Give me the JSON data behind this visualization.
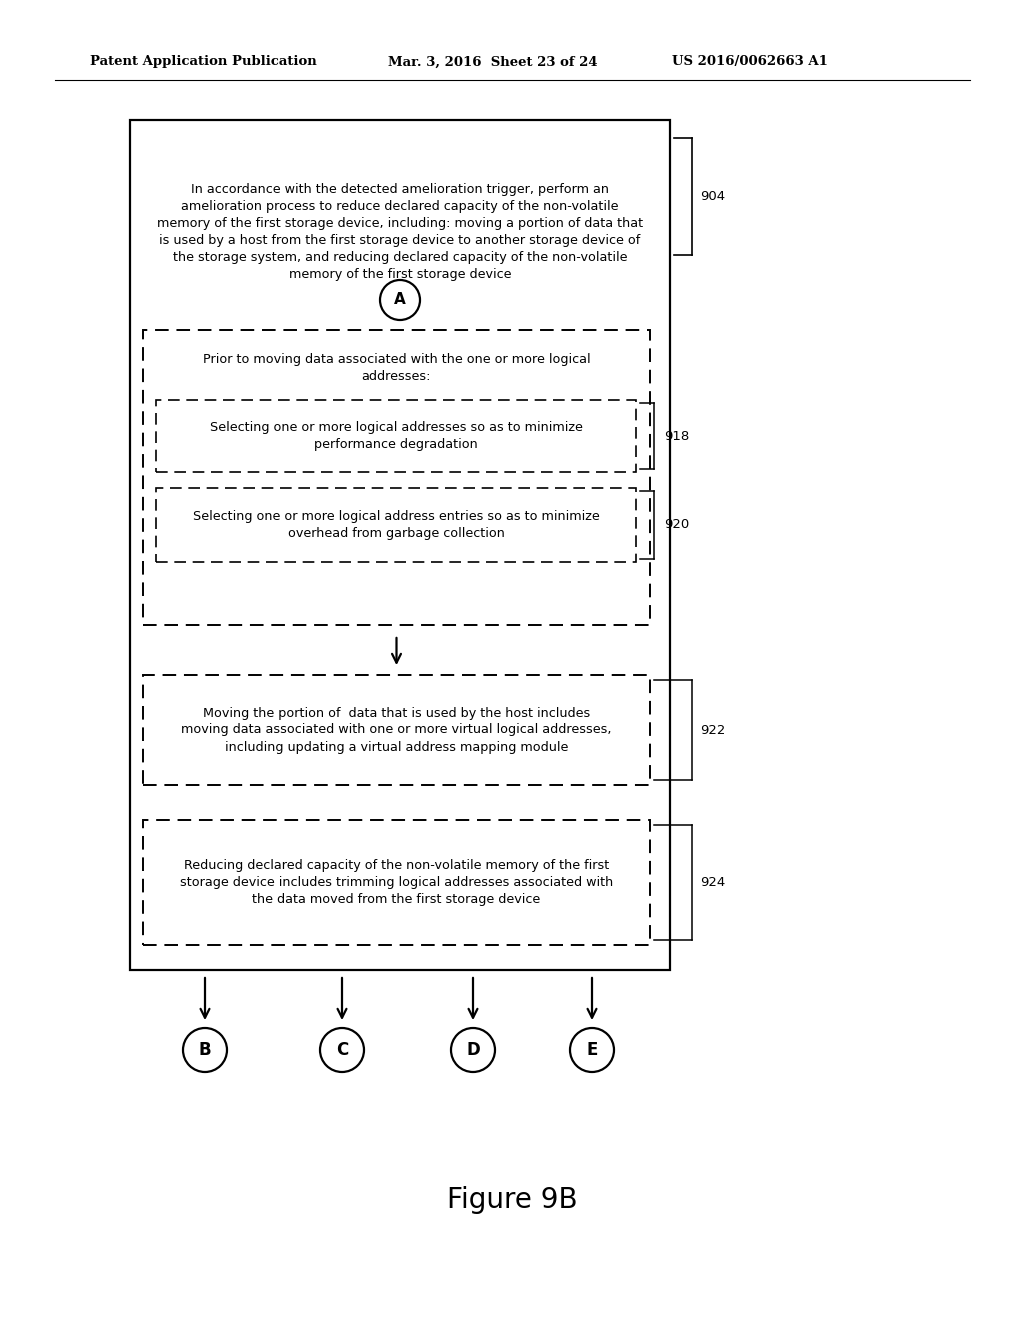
{
  "bg_color": "#ffffff",
  "header_line1": "Patent Application Publication",
  "header_date": "Mar. 3, 2016  Sheet 23 of 24",
  "header_patent": "US 2016/0062663 A1",
  "figure_label": "Figure 9B",
  "box904_text": "In accordance with the detected amelioration trigger, perform an\namelioration process to reduce declared capacity of the non-volatile\nmemory of the first storage device, including: moving a portion of data that\nis used by a host from the first storage device to another storage device of\nthe storage system, and reducing declared capacity of the non-volatile\nmemory of the first storage device",
  "box904_label": "904",
  "circle_A_label": "A",
  "box_prior_text": "Prior to moving data associated with the one or more logical\naddresses:",
  "box918_text": "Selecting one or more logical addresses so as to minimize\nperformance degradation",
  "box918_label": "918",
  "box920_text": "Selecting one or more logical address entries so as to minimize\noverhead from garbage collection",
  "box920_label": "920",
  "box922_text": "Moving the portion of  data that is used by the host includes\nmoving data associated with one or more virtual logical addresses,\nincluding updating a virtual address mapping module",
  "box922_label": "922",
  "box924_text": "Reducing declared capacity of the non-volatile memory of the first\nstorage device includes trimming logical addresses associated with\nthe data moved from the first storage device",
  "box924_label": "924",
  "circles_bottom": [
    "B",
    "C",
    "D",
    "E"
  ]
}
